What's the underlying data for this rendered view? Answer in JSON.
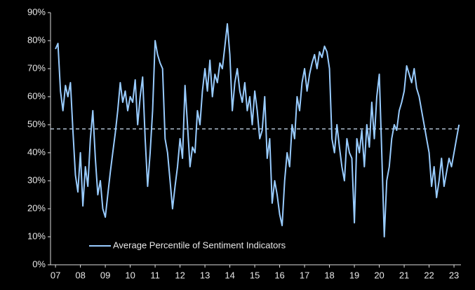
{
  "chart_data": {
    "type": "line",
    "x": [
      2007,
      2007.1,
      2007.2,
      2007.3,
      2007.4,
      2007.5,
      2007.6,
      2007.7,
      2007.8,
      2007.9,
      2008,
      2008.1,
      2008.2,
      2008.3,
      2008.4,
      2008.5,
      2008.6,
      2008.7,
      2008.8,
      2008.9,
      2009,
      2009.1,
      2009.2,
      2009.3,
      2009.4,
      2009.5,
      2009.6,
      2009.7,
      2009.8,
      2009.9,
      2010,
      2010.1,
      2010.2,
      2010.3,
      2010.4,
      2010.5,
      2010.6,
      2010.7,
      2010.8,
      2010.9,
      2011,
      2011.1,
      2011.2,
      2011.3,
      2011.4,
      2011.5,
      2011.6,
      2011.7,
      2011.8,
      2011.9,
      2012,
      2012.1,
      2012.2,
      2012.3,
      2012.4,
      2012.5,
      2012.6,
      2012.7,
      2012.8,
      2012.9,
      2013,
      2013.1,
      2013.2,
      2013.3,
      2013.4,
      2013.5,
      2013.6,
      2013.7,
      2013.8,
      2013.9,
      2014,
      2014.1,
      2014.2,
      2014.3,
      2014.4,
      2014.5,
      2014.6,
      2014.7,
      2014.8,
      2014.9,
      2015,
      2015.1,
      2015.2,
      2015.3,
      2015.4,
      2015.5,
      2015.6,
      2015.7,
      2015.8,
      2015.9,
      2016,
      2016.1,
      2016.2,
      2016.3,
      2016.4,
      2016.5,
      2016.6,
      2016.7,
      2016.8,
      2016.9,
      2017,
      2017.1,
      2017.2,
      2017.3,
      2017.4,
      2017.5,
      2017.6,
      2017.7,
      2017.8,
      2017.9,
      2018,
      2018.1,
      2018.2,
      2018.3,
      2018.4,
      2018.5,
      2018.6,
      2018.7,
      2018.8,
      2018.9,
      2019,
      2019.1,
      2019.2,
      2019.3,
      2019.4,
      2019.5,
      2019.6,
      2019.7,
      2019.8,
      2019.9,
      2020,
      2020.1,
      2020.2,
      2020.3,
      2020.4,
      2020.5,
      2020.6,
      2020.7,
      2020.8,
      2020.9,
      2021,
      2021.1,
      2021.2,
      2021.3,
      2021.4,
      2021.5,
      2021.6,
      2021.7,
      2021.8,
      2021.9,
      2022,
      2022.1,
      2022.2,
      2022.3,
      2022.4,
      2022.5,
      2022.6,
      2022.7,
      2022.8,
      2022.9,
      2023,
      2023.1,
      2023.2
    ],
    "series": [
      {
        "name": "Average Percentile of Sentiment Indicators",
        "color": "#99ccff",
        "values": [
          77,
          79,
          62,
          55,
          64,
          60,
          65,
          48,
          32,
          26,
          40,
          21,
          35,
          28,
          45,
          55,
          38,
          25,
          30,
          20,
          17,
          25,
          33,
          40,
          47,
          55,
          65,
          58,
          62,
          55,
          60,
          58,
          66,
          50,
          60,
          67,
          45,
          28,
          40,
          55,
          80,
          75,
          72,
          70,
          45,
          40,
          30,
          20,
          28,
          35,
          45,
          38,
          64,
          50,
          35,
          42,
          40,
          55,
          50,
          62,
          70,
          62,
          73,
          60,
          68,
          65,
          72,
          70,
          78,
          86,
          75,
          55,
          65,
          70,
          62,
          58,
          65,
          55,
          60,
          50,
          62,
          55,
          45,
          48,
          60,
          38,
          45,
          22,
          30,
          25,
          18,
          14,
          30,
          40,
          35,
          50,
          45,
          60,
          55,
          65,
          70,
          62,
          68,
          72,
          75,
          70,
          76,
          74,
          78,
          76,
          70,
          45,
          40,
          50,
          42,
          35,
          30,
          45,
          40,
          38,
          15,
          45,
          40,
          48,
          35,
          50,
          42,
          58,
          45,
          60,
          68,
          40,
          10,
          30,
          35,
          45,
          50,
          48,
          55,
          58,
          62,
          71,
          68,
          65,
          70,
          63,
          60,
          55,
          50,
          45,
          40,
          28,
          35,
          24,
          30,
          38,
          28,
          33,
          38,
          35,
          40,
          45,
          50
        ]
      }
    ],
    "reference_line": 48.5,
    "xlim": [
      2006.8,
      2023.28
    ],
    "xticks": [
      {
        "value": 2007,
        "label": "07"
      },
      {
        "value": 2008,
        "label": "08"
      },
      {
        "value": 2009,
        "label": "09"
      },
      {
        "value": 2010,
        "label": "10"
      },
      {
        "value": 2011,
        "label": "11"
      },
      {
        "value": 2012,
        "label": "12"
      },
      {
        "value": 2013,
        "label": "13"
      },
      {
        "value": 2014,
        "label": "14"
      },
      {
        "value": 2015,
        "label": "15"
      },
      {
        "value": 2016,
        "label": "16"
      },
      {
        "value": 2017,
        "label": "17"
      },
      {
        "value": 2018,
        "label": "18"
      },
      {
        "value": 2019,
        "label": "19"
      },
      {
        "value": 2020,
        "label": "20"
      },
      {
        "value": 2021,
        "label": "21"
      },
      {
        "value": 2022,
        "label": "22"
      },
      {
        "value": 2023,
        "label": "23"
      }
    ],
    "ylim": [
      0,
      90
    ],
    "yticks": [
      {
        "value": 0,
        "label": "0%"
      },
      {
        "value": 10,
        "label": "10%"
      },
      {
        "value": 20,
        "label": "20%"
      },
      {
        "value": 30,
        "label": "30%"
      },
      {
        "value": 40,
        "label": "40%"
      },
      {
        "value": 50,
        "label": "50%"
      },
      {
        "value": 60,
        "label": "60%"
      },
      {
        "value": 70,
        "label": "70%"
      },
      {
        "value": 80,
        "label": "80%"
      },
      {
        "value": 90,
        "label": "90%"
      }
    ],
    "legend": "lower-left"
  }
}
